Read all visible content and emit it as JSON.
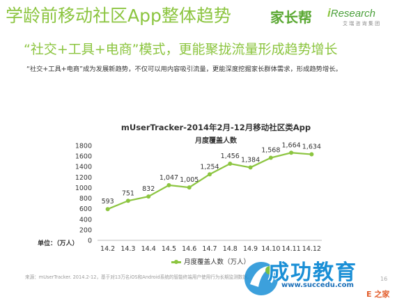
{
  "slide": {
    "title": "学龄前移动社区App整体趋势",
    "subtitle": "“社交+工具+电商”模式，更能聚拢流量形成趋势增长",
    "description": "“社交+工具+电商”成为发展新趋势，不仅可以用内容吸引流量，更能深度挖掘家长群体需求，形成趋势增长。",
    "source_note": "来源：mUserTracker. 2014.2-12，基于对13万名iOS和Android系统的智能终端用户使用行为长期监测数据。",
    "page_number": "16"
  },
  "logos": {
    "brand_left": "家长帮",
    "brand_right_first_letter": "i",
    "brand_right_rest": "Research",
    "brand_right_sub": "艾 瑞 咨 询 集 团"
  },
  "watermark": {
    "text": "成功教育",
    "url": "www.succedu.com",
    "corner": "E 之家"
  },
  "chart_data": {
    "type": "line",
    "title": "mUserTracker-2014年2月-12月移动社区类App",
    "subtitle": "月度覆盖人数",
    "unit_label": "单位：（万人）",
    "categories": [
      "14.2",
      "14.3",
      "14.4",
      "14.5",
      "14.6",
      "14.7",
      "14.8",
      "14.9",
      "14.10",
      "14.11",
      "14.12"
    ],
    "series": [
      {
        "name": "月度覆盖人数（万人）",
        "values": [
          593,
          751,
          832,
          1047,
          1005,
          1254,
          1456,
          1384,
          1568,
          1664,
          1634
        ]
      }
    ],
    "ylim": [
      0,
      1800
    ],
    "yticks": [
      0,
      200,
      400,
      600,
      800,
      1000,
      1200,
      1400,
      1600,
      1800
    ],
    "grid": false,
    "legend_position": "bottom",
    "color": "#8cc540"
  }
}
